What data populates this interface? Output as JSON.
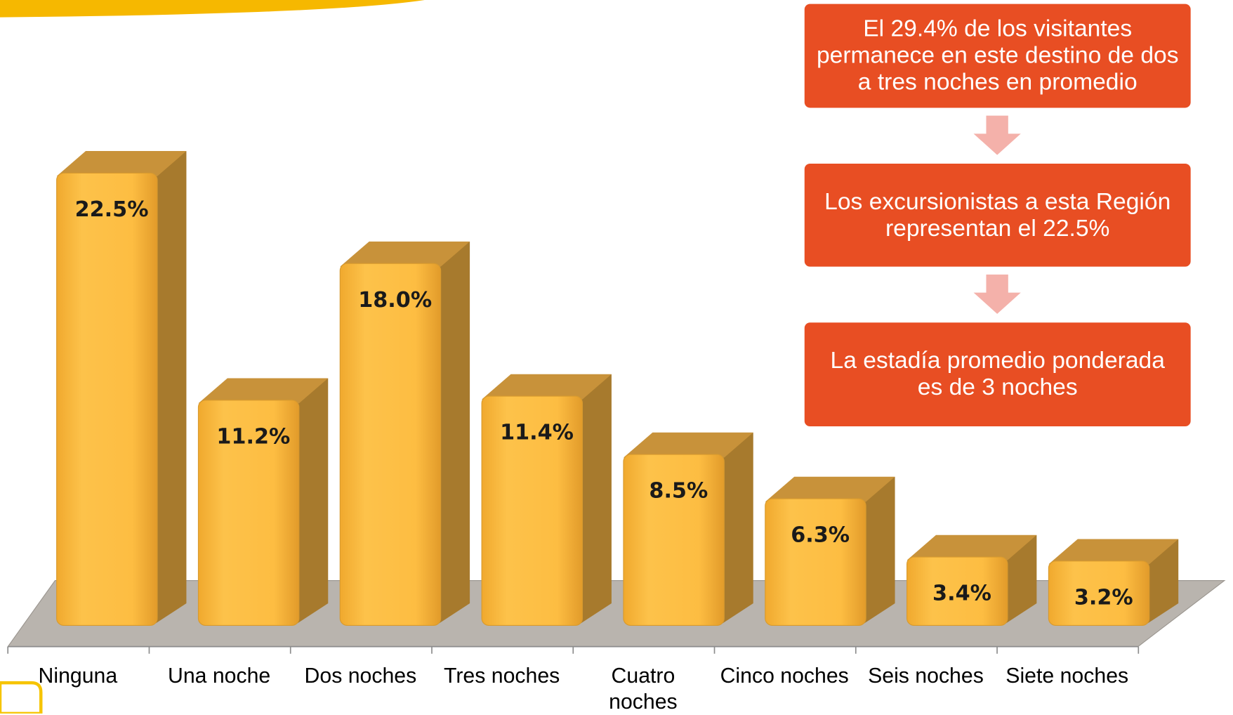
{
  "chart_data": {
    "type": "bar",
    "categories": [
      "Ninguna",
      "Una noche",
      "Dos noches",
      "Tres noches",
      "Cuatro noches",
      "Cinco noches",
      "Seis noches",
      "Siete noches"
    ],
    "values": [
      22.5,
      11.2,
      18.0,
      11.4,
      8.5,
      6.3,
      3.4,
      3.2
    ],
    "value_labels": [
      "22.5%",
      "11.2%",
      "18.0%",
      "11.4%",
      "8.5%",
      "6.3%",
      "3.4%",
      "3.2%"
    ],
    "color": "#fcbc42",
    "annotations": [
      "El 29.4% de los visitantes permanece en este destino de dos a tres noches en promedio",
      "Los excursionistas a esta Región representan el 22.5%",
      "La estadía promedio ponderada es de 3 noches"
    ]
  }
}
